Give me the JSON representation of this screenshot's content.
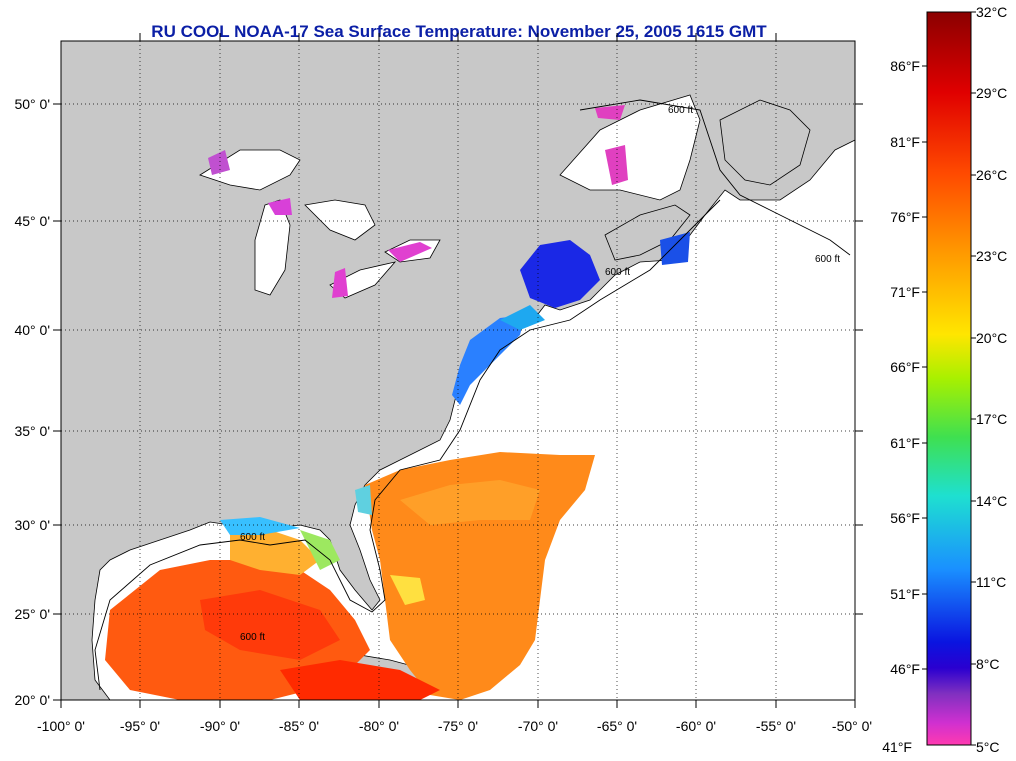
{
  "title": "RU COOL  NOAA-17  Sea Surface Temperature:  November 25, 2005 1615 GMT",
  "lon_ticks": [
    "-100° 0'",
    "-95° 0'",
    "-90° 0'",
    "-85° 0'",
    "-80° 0'",
    "-75° 0'",
    "-70° 0'",
    "-65° 0'",
    "-60° 0'",
    "-55° 0'",
    "-50° 0'"
  ],
  "lat_ticks": [
    "20° 0'",
    "25° 0'",
    "30° 0'",
    "35° 0'",
    "40° 0'",
    "45° 0'",
    "50° 0'"
  ],
  "isobath_label": "600 ft",
  "colorbar": {
    "celsius": [
      "32°C",
      "29°C",
      "26°C",
      "23°C",
      "20°C",
      "17°C",
      "14°C",
      "11°C",
      "8°C",
      "5°C"
    ],
    "fahrenheit": [
      "86°F",
      "81°F",
      "76°F",
      "71°F",
      "66°F",
      "61°F",
      "56°F",
      "51°F",
      "46°F",
      "41°F"
    ],
    "colors": [
      "#8b0000",
      "#e00000",
      "#ff4a00",
      "#ff9a00",
      "#ffe600",
      "#a8f000",
      "#3fe050",
      "#1ee0d0",
      "#1a90ff",
      "#0a14e0",
      "#2a00d0",
      "#8030c0",
      "#d030d0",
      "#ff3ab0"
    ]
  },
  "colors": {
    "land": "#c8c8c8",
    "ocean_nodata": "#ffffff",
    "title": "#0b1fa6"
  }
}
